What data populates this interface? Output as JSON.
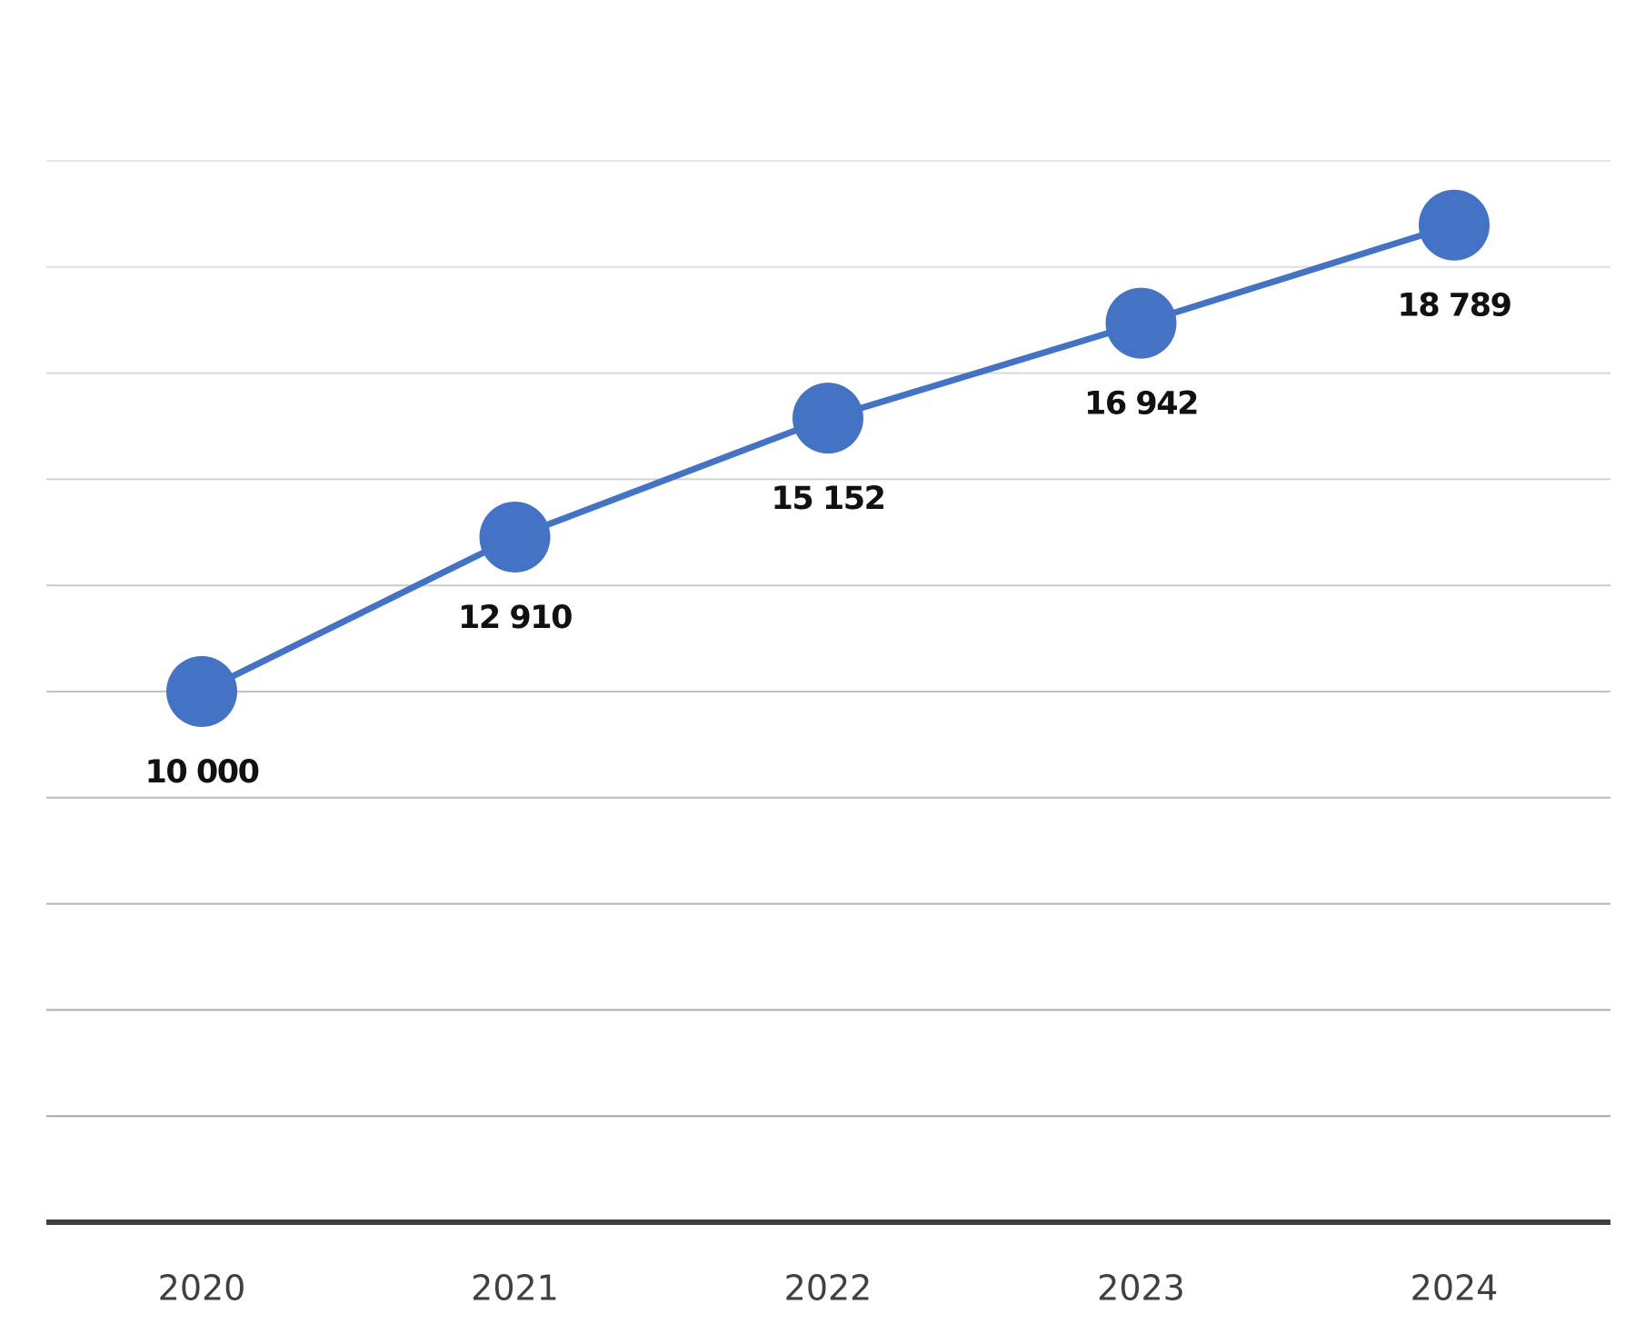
{
  "chart_data": {
    "type": "line",
    "categories": [
      "2020",
      "2021",
      "2022",
      "2023",
      "2024"
    ],
    "series": [
      {
        "values": [
          10000,
          12910,
          15152,
          16942,
          18789
        ],
        "data_labels": [
          "10 000",
          "12 910",
          "15 152",
          "16 942",
          "18 789"
        ],
        "color": "#4472c4"
      }
    ],
    "title": "",
    "xlabel": "",
    "ylabel": "",
    "ylim": [
      0,
      20000
    ],
    "grid": true,
    "y_tick_labels_shown": false,
    "legend": "none",
    "colors": {
      "gridline_top": "#e6e6e6",
      "gridline_bottom": "#a6a6a6",
      "axis": "#404040",
      "label": "#111111",
      "tick_label": "#404040"
    }
  }
}
